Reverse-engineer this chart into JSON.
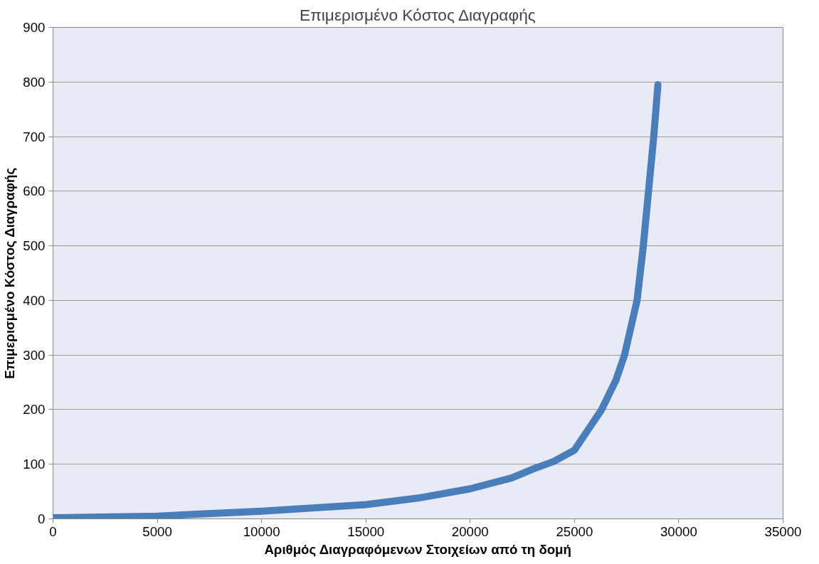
{
  "chart_data": {
    "type": "line",
    "title": "Επιμερισμένο Κόστος Διαγραφής",
    "xlabel": "Αριθμός Διαγραφόμενων Στοιχείων από τη δομή",
    "ylabel": "Επιμερισμένο Κόστος Διαγραφής",
    "series": [
      {
        "color": "#4a7ebb",
        "x": [
          0,
          5000,
          10000,
          15000,
          17500,
          20000,
          22000,
          23000,
          24000,
          25000,
          26300,
          27000,
          27400,
          28000,
          28300,
          28550,
          28800,
          29000
        ],
        "values": [
          2,
          5,
          14,
          26,
          38,
          55,
          75,
          91,
          105,
          126,
          200,
          255,
          300,
          400,
          500,
          600,
          700,
          795
        ]
      }
    ],
    "xlim": [
      0,
      35000
    ],
    "xticks": [
      0,
      5000,
      10000,
      15000,
      20000,
      25000,
      30000,
      35000
    ],
    "ylim": [
      0,
      900
    ],
    "yticks": [
      0,
      100,
      200,
      300,
      400,
      500,
      600,
      700,
      800,
      900
    ],
    "grid": "y",
    "marker": "none",
    "line_style": "solid"
  }
}
